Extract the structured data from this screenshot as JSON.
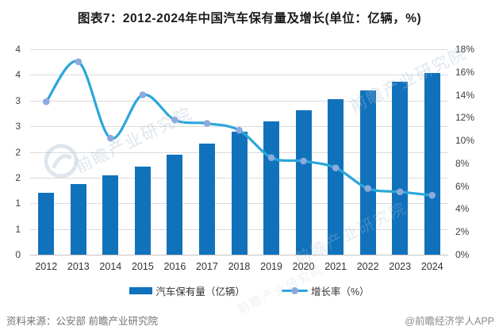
{
  "title": "图表7：2012-2024年中国汽车保有量及增长(单位：亿辆，%)",
  "chart_data": {
    "type": "bar",
    "subtype": "bar+line combo, dual y-axes",
    "categories": [
      "2012",
      "2013",
      "2014",
      "2015",
      "2016",
      "2017",
      "2018",
      "2019",
      "2020",
      "2021",
      "2022",
      "2023",
      "2024"
    ],
    "series": [
      {
        "name": "汽车保有量（亿辆）",
        "type": "bar",
        "axis": "left",
        "color": "#1172BC",
        "values": [
          1.2,
          1.37,
          1.54,
          1.72,
          1.94,
          2.17,
          2.4,
          2.6,
          2.81,
          3.02,
          3.19,
          3.36,
          3.53
        ]
      },
      {
        "name": "增长率（%）",
        "type": "line",
        "axis": "right",
        "color": "#2BA6DA",
        "marker_color": "#8FA9DC",
        "values": [
          13.4,
          16.9,
          10.2,
          14.0,
          11.8,
          11.5,
          10.9,
          8.5,
          8.2,
          7.6,
          5.8,
          5.5,
          5.2
        ]
      }
    ],
    "left_axis": {
      "min": 0,
      "max": 4,
      "step": 0.5,
      "tick_labels_top_to_bottom": [
        "4",
        "4",
        "3",
        "3",
        "2",
        "2",
        "1",
        "1",
        "0"
      ]
    },
    "right_axis": {
      "min": 0,
      "max": 18,
      "step": 2,
      "tick_labels_top_to_bottom": [
        "18%",
        "16%",
        "14%",
        "12%",
        "10%",
        "8%",
        "6%",
        "4%",
        "2%",
        "0%"
      ]
    },
    "grid": "horizontal gridlines on",
    "legend_position": "bottom"
  },
  "legend": {
    "bar_label": "汽车保有量（亿辆）",
    "line_label": "增长率（%）"
  },
  "footer": {
    "source": "资料来源：公安部 前瞻产业研究院",
    "credit": "@前瞻经济学人APP"
  },
  "watermark": {
    "text": "前瞻产业研究院"
  },
  "colors": {
    "bar": "#1172BC",
    "line": "#2BA6DA",
    "marker": "#8FA9DC",
    "grid": "#DBDBDB",
    "axis_line": "#C2C2C2"
  }
}
